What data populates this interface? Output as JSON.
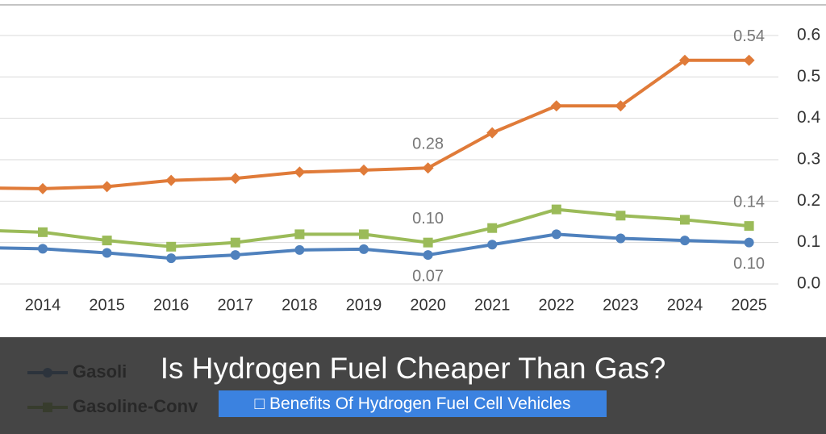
{
  "chart_data": {
    "type": "line",
    "categories": [
      null,
      "2014",
      "2015",
      "2016",
      "2017",
      "2018",
      "2019",
      "2020",
      "2021",
      "2022",
      "2023",
      "2024",
      "2025"
    ],
    "series": [
      {
        "color": "#e07b39",
        "marker": "diamond",
        "values": [
          0.232,
          0.23,
          0.235,
          0.25,
          0.255,
          0.27,
          0.275,
          0.28,
          0.365,
          0.43,
          0.43,
          0.54,
          0.54
        ],
        "value_labels": [
          null,
          null,
          null,
          null,
          null,
          null,
          null,
          "0.28",
          null,
          null,
          null,
          null,
          "0.54"
        ]
      },
      {
        "name": "Gasoline-Conv",
        "color": "#9bbb59",
        "marker": "square",
        "values": [
          0.13,
          0.125,
          0.105,
          0.09,
          0.1,
          0.12,
          0.12,
          0.1,
          0.135,
          0.18,
          0.165,
          0.155,
          0.14
        ],
        "value_labels": [
          null,
          null,
          null,
          null,
          null,
          null,
          null,
          "0.10",
          null,
          null,
          null,
          null,
          "0.14"
        ]
      },
      {
        "name": "Gasoli",
        "color": "#4f81bd",
        "marker": "circle",
        "values": [
          0.088,
          0.085,
          0.075,
          0.062,
          0.07,
          0.082,
          0.084,
          0.07,
          0.095,
          0.12,
          0.11,
          0.105,
          0.1
        ],
        "value_labels": [
          null,
          null,
          null,
          null,
          null,
          null,
          null,
          "0.07",
          null,
          null,
          null,
          null,
          "0.10"
        ]
      }
    ],
    "ylim": [
      0,
      0.6
    ],
    "yticks": [
      {
        "value": 0,
        "label": "0.0"
      },
      0.1,
      0.2,
      0.3,
      0.4,
      0.5,
      0.6
    ],
    "grid": true
  },
  "overlay": {
    "title": "Is Hydrogen Fuel Cheaper Than Gas?",
    "link": "Benefits Of Hydrogen Fuel Cell Vehicles"
  }
}
